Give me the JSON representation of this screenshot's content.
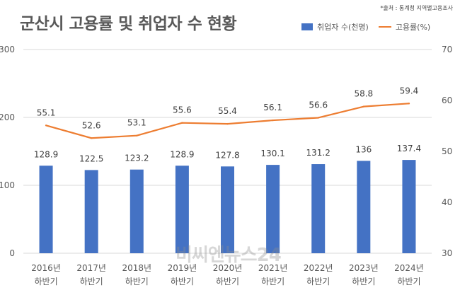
{
  "title": "군산시 고용률 및 취업자 수 현황",
  "source": "*출처 : 통계청 지역별고용조사",
  "watermark": "비씨엔뉴스24",
  "colors": {
    "bar": "#4472C4",
    "line": "#ED7D31",
    "grid": "#D9D9D9",
    "text": "#595959"
  },
  "chart_data": {
    "type": "bar",
    "categories": [
      [
        "2016년",
        "하반기"
      ],
      [
        "2017년",
        "하반기"
      ],
      [
        "2018년",
        "하반기"
      ],
      [
        "2019년",
        "하반기"
      ],
      [
        "2020년",
        "하반기"
      ],
      [
        "2021년",
        "하반기"
      ],
      [
        "2022년",
        "하반기"
      ],
      [
        "2023년",
        "하반기"
      ],
      [
        "2024년",
        "하반기"
      ]
    ],
    "series": [
      {
        "name": "취업자 수(천명)",
        "type": "bar",
        "axis": "left",
        "values": [
          128.9,
          122.5,
          123.2,
          128.9,
          127.8,
          130.1,
          131.2,
          136,
          137.4
        ],
        "labels": [
          "128.9",
          "122.5",
          "123.2",
          "128.9",
          "127.8",
          "130.1",
          "131.2",
          "136",
          "137.4"
        ]
      },
      {
        "name": "고용률(%)",
        "type": "line",
        "axis": "right",
        "values": [
          55.1,
          52.6,
          53.1,
          55.6,
          55.4,
          56.1,
          56.6,
          58.8,
          59.4
        ],
        "labels": [
          "55.1",
          "52.6",
          "53.1",
          "55.6",
          "55.4",
          "56.1",
          "56.6",
          "58.8",
          "59.4"
        ]
      }
    ],
    "y_left": {
      "min": 0,
      "max": 300,
      "ticks": [
        "0",
        "100",
        "200",
        "300"
      ]
    },
    "y_right": {
      "min": 30,
      "max": 70,
      "ticks": [
        "30",
        "40",
        "50",
        "60",
        "70"
      ]
    },
    "grid": true,
    "legend": "top-right"
  }
}
